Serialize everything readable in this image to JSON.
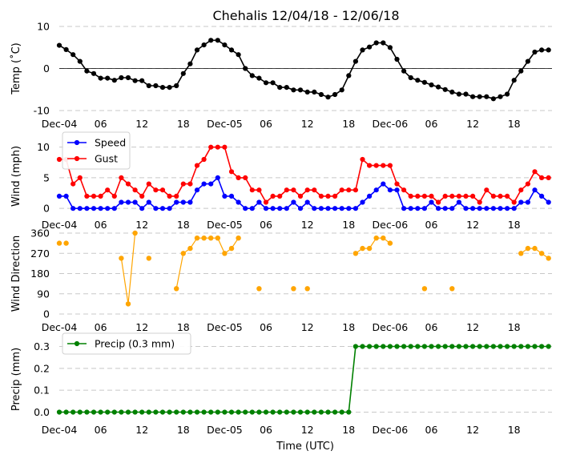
{
  "figure": {
    "title": "Chehalis 12/04/18 - 12/06/18",
    "xlabel": "Time (UTC)"
  },
  "time_ticks": [
    {
      "h": 0,
      "label": "Dec-04"
    },
    {
      "h": 6,
      "label": "06"
    },
    {
      "h": 12,
      "label": "12"
    },
    {
      "h": 18,
      "label": "18"
    },
    {
      "h": 24,
      "label": "Dec-05"
    },
    {
      "h": 30,
      "label": "06"
    },
    {
      "h": 36,
      "label": "12"
    },
    {
      "h": 42,
      "label": "18"
    },
    {
      "h": 48,
      "label": "Dec-06"
    },
    {
      "h": 54,
      "label": "06"
    },
    {
      "h": 60,
      "label": "12"
    },
    {
      "h": 66,
      "label": "18"
    }
  ],
  "chart_data": [
    {
      "type": "line",
      "name": "temperature",
      "ylabel": "Temp (˚C)",
      "ylim": [
        -10,
        10
      ],
      "yticks": [
        -10,
        0,
        10
      ],
      "x_unit": "hours since 2018-12-04 00 UTC",
      "xlim": [
        0,
        71.5
      ],
      "zero_line": true,
      "series": [
        {
          "name": "Temp",
          "color": "#000000",
          "x": [
            0,
            1,
            2,
            3,
            4,
            5,
            6,
            7,
            8,
            9,
            10,
            11,
            12,
            13,
            14,
            15,
            16,
            17,
            18,
            19,
            20,
            21,
            22,
            23,
            24,
            25,
            26,
            27,
            28,
            29,
            30,
            31,
            32,
            33,
            34,
            35,
            36,
            37,
            38,
            39,
            40,
            41,
            42,
            43,
            44,
            45,
            46,
            47,
            48,
            49,
            50,
            51,
            52,
            53,
            54,
            55,
            56,
            57,
            58,
            59,
            60,
            61,
            62,
            63,
            64,
            65,
            66,
            67,
            68,
            69,
            70,
            71
          ],
          "y": [
            5.5,
            4.5,
            3.3,
            1.7,
            -0.6,
            -1.2,
            -2.3,
            -2.3,
            -2.8,
            -2.2,
            -2.2,
            -2.9,
            -2.9,
            -4.1,
            -4.1,
            -4.5,
            -4.5,
            -4.1,
            -1.2,
            1.1,
            4.4,
            5.6,
            6.7,
            6.7,
            5.6,
            4.4,
            3.3,
            0,
            -1.7,
            -2.3,
            -3.4,
            -3.4,
            -4.5,
            -4.5,
            -5.1,
            -5.1,
            -5.6,
            -5.6,
            -6.2,
            -6.8,
            -6.2,
            -5.1,
            -1.7,
            1.7,
            4.4,
            5.1,
            6.1,
            6.1,
            5.0,
            2.2,
            -0.6,
            -2.2,
            -2.8,
            -3.3,
            -3.9,
            -4.4,
            -5.0,
            -5.6,
            -6.1,
            -6.1,
            -6.7,
            -6.7,
            -6.7,
            -7.2,
            -6.7,
            -6.1,
            -2.8,
            -0.6,
            1.7,
            3.9,
            4.4,
            4.4
          ]
        }
      ]
    },
    {
      "type": "line",
      "name": "wind",
      "ylabel": "Wind (mph)",
      "ylim": [
        -0.5,
        11
      ],
      "yticks": [
        0,
        5,
        10
      ],
      "legend": "top-left",
      "series": [
        {
          "name": "Speed",
          "color": "#0000ff",
          "x": [
            0,
            1,
            2,
            3,
            4,
            5,
            6,
            7,
            8,
            9,
            10,
            11,
            12,
            13,
            14,
            15,
            16,
            17,
            18,
            19,
            20,
            21,
            22,
            23,
            24,
            25,
            26,
            27,
            28,
            29,
            30,
            31,
            32,
            33,
            34,
            35,
            36,
            37,
            38,
            39,
            40,
            41,
            42,
            43,
            44,
            45,
            46,
            47,
            48,
            49,
            50,
            51,
            52,
            53,
            54,
            55,
            56,
            57,
            58,
            59,
            60,
            61,
            62,
            63,
            64,
            65,
            66,
            67,
            68,
            69,
            70,
            71
          ],
          "y": [
            2,
            2,
            0,
            0,
            0,
            0,
            0,
            0,
            0,
            1,
            1,
            1,
            0,
            1,
            0,
            0,
            0,
            1,
            1,
            1,
            3,
            4,
            4,
            5,
            2,
            2,
            1,
            0,
            0,
            1,
            0,
            0,
            0,
            0,
            1,
            0,
            1,
            0,
            0,
            0,
            0,
            0,
            0,
            0,
            1,
            2,
            3,
            4,
            3,
            3,
            0,
            0,
            0,
            0,
            1,
            0,
            0,
            0,
            1,
            0,
            0,
            0,
            0,
            0,
            0,
            0,
            0,
            1,
            1,
            3,
            2,
            1
          ]
        },
        {
          "name": "Gust",
          "color": "#ff0000",
          "x": [
            0,
            1,
            2,
            3,
            4,
            5,
            6,
            7,
            8,
            9,
            10,
            11,
            12,
            13,
            14,
            15,
            16,
            17,
            18,
            19,
            20,
            21,
            22,
            23,
            24,
            25,
            26,
            27,
            28,
            29,
            30,
            31,
            32,
            33,
            34,
            35,
            36,
            37,
            38,
            39,
            40,
            41,
            42,
            43,
            44,
            45,
            46,
            47,
            48,
            49,
            50,
            51,
            52,
            53,
            54,
            55,
            56,
            57,
            58,
            59,
            60,
            61,
            62,
            63,
            64,
            65,
            66,
            67,
            68,
            69,
            70,
            71
          ],
          "y": [
            8,
            8,
            4,
            5,
            2,
            2,
            2,
            3,
            2,
            5,
            4,
            3,
            2,
            4,
            3,
            3,
            2,
            2,
            4,
            4,
            7,
            8,
            10,
            10,
            10,
            6,
            5,
            5,
            3,
            3,
            1,
            2,
            2,
            3,
            3,
            2,
            3,
            3,
            2,
            2,
            2,
            3,
            3,
            3,
            8,
            7,
            7,
            7,
            7,
            4,
            3,
            2,
            2,
            2,
            2,
            1,
            2,
            2,
            2,
            2,
            2,
            1,
            3,
            2,
            2,
            2,
            1,
            3,
            4,
            6,
            5,
            5
          ]
        }
      ]
    },
    {
      "type": "scatter",
      "name": "wind_direction",
      "ylabel": "Wind Direction",
      "ylim": [
        0,
        360
      ],
      "yticks": [
        0,
        90,
        180,
        270,
        360
      ],
      "series": [
        {
          "name": "Direction",
          "color": "#ffa500",
          "points": [
            [
              0,
              315
            ],
            [
              1,
              315
            ],
            [
              9,
              248
            ],
            [
              10,
              45
            ],
            [
              11,
              360
            ],
            [
              13,
              248
            ],
            [
              17,
              113
            ],
            [
              18,
              270
            ],
            [
              19,
              292
            ],
            [
              20,
              338
            ],
            [
              21,
              338
            ],
            [
              22,
              338
            ],
            [
              23,
              338
            ],
            [
              24,
              270
            ],
            [
              25,
              292
            ],
            [
              26,
              338
            ],
            [
              29,
              113
            ],
            [
              34,
              113
            ],
            [
              36,
              113
            ],
            [
              43,
              270
            ],
            [
              44,
              292
            ],
            [
              45,
              292
            ],
            [
              46,
              338
            ],
            [
              47,
              338
            ],
            [
              48,
              315
            ],
            [
              53,
              113
            ],
            [
              57,
              113
            ],
            [
              67,
              270
            ],
            [
              68,
              292
            ],
            [
              69,
              292
            ],
            [
              70,
              270
            ],
            [
              71,
              248
            ]
          ],
          "connected_segments": [
            [
              9,
              10,
              11
            ],
            [
              17,
              18,
              19,
              20,
              21,
              22,
              23,
              24,
              25,
              26
            ],
            [
              43,
              44,
              45,
              46,
              47,
              48
            ],
            [
              67,
              68,
              69,
              70,
              71
            ]
          ]
        }
      ]
    },
    {
      "type": "line",
      "name": "precip",
      "ylabel": "Precip (mm)",
      "ylim": [
        -0.02,
        0.32
      ],
      "yticks": [
        0.0,
        0.1,
        0.2,
        0.3
      ],
      "ytick_labels": [
        "0.0",
        "0.1",
        "0.2",
        "0.3"
      ],
      "legend": "top-left",
      "series": [
        {
          "name": "Precip (0.3 mm)",
          "color": "#008000",
          "x": [
            0,
            1,
            2,
            3,
            4,
            5,
            6,
            7,
            8,
            9,
            10,
            11,
            12,
            13,
            14,
            15,
            16,
            17,
            18,
            19,
            20,
            21,
            22,
            23,
            24,
            25,
            26,
            27,
            28,
            29,
            30,
            31,
            32,
            33,
            34,
            35,
            36,
            37,
            38,
            39,
            40,
            41,
            42,
            43,
            44,
            45,
            46,
            47,
            48,
            49,
            50,
            51,
            52,
            53,
            54,
            55,
            56,
            57,
            58,
            59,
            60,
            61,
            62,
            63,
            64,
            65,
            66,
            67,
            68,
            69,
            70,
            71
          ],
          "y": [
            0,
            0,
            0,
            0,
            0,
            0,
            0,
            0,
            0,
            0,
            0,
            0,
            0,
            0,
            0,
            0,
            0,
            0,
            0,
            0,
            0,
            0,
            0,
            0,
            0,
            0,
            0,
            0,
            0,
            0,
            0,
            0,
            0,
            0,
            0,
            0,
            0,
            0,
            0,
            0,
            0,
            0,
            0,
            0.3,
            0.3,
            0.3,
            0.3,
            0.3,
            0.3,
            0.3,
            0.3,
            0.3,
            0.3,
            0.3,
            0.3,
            0.3,
            0.3,
            0.3,
            0.3,
            0.3,
            0.3,
            0.3,
            0.3,
            0.3,
            0.3,
            0.3,
            0.3,
            0.3,
            0.3,
            0.3,
            0.3,
            0.3
          ]
        }
      ]
    }
  ]
}
